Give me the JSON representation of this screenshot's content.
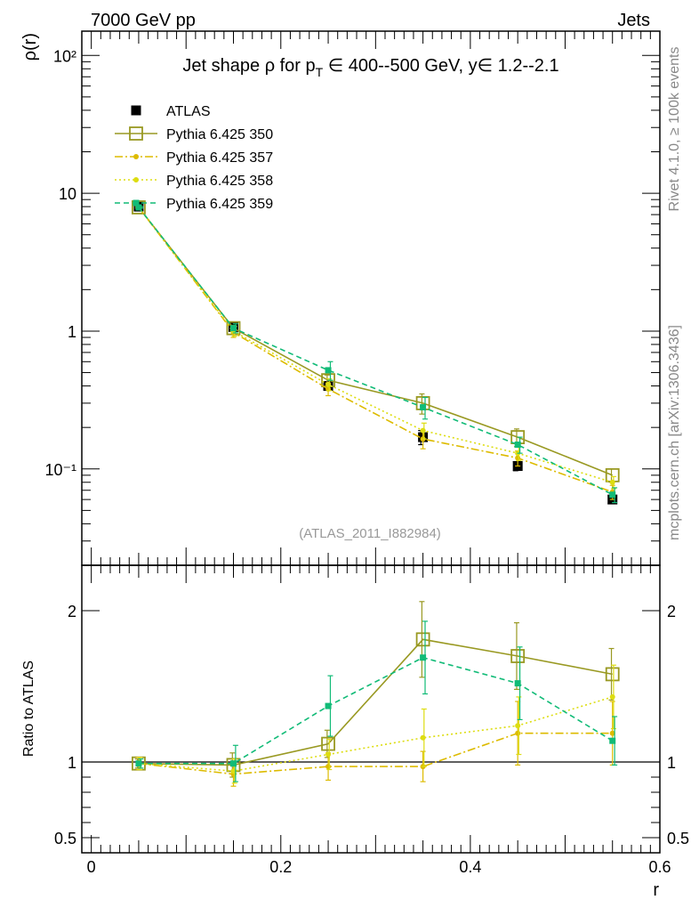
{
  "header": {
    "left": "7000 GeV pp",
    "right": "Jets"
  },
  "side_labels": {
    "rivet": "Rivet 4.1.0, ≥ 100k events",
    "mcplots": "mcplots.cern.ch [arXiv:1306.3436]"
  },
  "colors": {
    "atlas": "#000000",
    "p350": "#999922",
    "p357": "#ddbb00",
    "p358": "#dddd11",
    "p359": "#11bb77"
  },
  "chart_data": [
    {
      "type": "line",
      "title": "Jet shape ρ for p_T ∈ 400--500 GeV, y∈ 1.2--2.1",
      "title_parts": {
        "pre": "Jet shape ρ for p",
        "sub": "T",
        "post": " ∈ 400--500 GeV, y∈ 1.2--2.1"
      },
      "ylabel": "ρ(r)",
      "yscale": "log",
      "ylim": [
        0.02,
        150
      ],
      "xlim": [
        -0.01,
        0.6
      ],
      "ytick_labels": [
        "10²",
        "10",
        "1",
        "10⁻¹"
      ],
      "x": [
        0.05,
        0.15,
        0.25,
        0.35,
        0.45,
        0.55
      ],
      "watermark": "(ATLAS_2011_I882984)",
      "legend": [
        "ATLAS",
        "Pythia 6.425 350",
        "Pythia 6.425 357",
        "Pythia 6.425 358",
        "Pythia 6.425 359"
      ],
      "series": [
        {
          "name": "ATLAS",
          "values": [
            8.0,
            1.07,
            0.4,
            0.17,
            0.105,
            0.06
          ],
          "errors": [
            0.1,
            0.03,
            0.02,
            0.02,
            0.008,
            0.004
          ]
        },
        {
          "name": "Pythia 6.425 350",
          "values": [
            7.9,
            1.05,
            0.44,
            0.3,
            0.17,
            0.09
          ],
          "errors": [
            0.1,
            0.05,
            0.04,
            0.05,
            0.025,
            0.01
          ]
        },
        {
          "name": "Pythia 6.425 357",
          "values": [
            7.9,
            0.98,
            0.38,
            0.165,
            0.12,
            0.068
          ],
          "errors": [
            0.1,
            0.08,
            0.04,
            0.025,
            0.015,
            0.008
          ]
        },
        {
          "name": "Pythia 6.425 358",
          "values": [
            7.9,
            1.0,
            0.41,
            0.19,
            0.13,
            0.08
          ],
          "errors": [
            0.1,
            0.08,
            0.04,
            0.025,
            0.015,
            0.008
          ]
        },
        {
          "name": "Pythia 6.425 359",
          "values": [
            7.9,
            1.05,
            0.52,
            0.28,
            0.15,
            0.065
          ],
          "errors": [
            0.1,
            0.08,
            0.08,
            0.05,
            0.02,
            0.008
          ]
        }
      ]
    },
    {
      "type": "line",
      "ylabel": "Ratio to ATLAS",
      "xlabel": "r",
      "ylim": [
        0.4,
        2.3
      ],
      "xlim": [
        -0.01,
        0.6
      ],
      "x": [
        0.05,
        0.15,
        0.25,
        0.35,
        0.45,
        0.55
      ],
      "yticks": [
        0.5,
        1,
        2
      ],
      "ytick_labels": [
        "0.5",
        "1",
        "2"
      ],
      "xticks": [
        0,
        0.2,
        0.4,
        0.6
      ],
      "xtick_labels": [
        "0",
        "0.2",
        "0.4",
        "0.6"
      ],
      "reference": 1,
      "series": [
        {
          "name": "Pythia 6.425 350",
          "values": [
            0.99,
            0.98,
            1.12,
            1.81,
            1.7,
            1.58
          ],
          "errors": [
            0.03,
            0.08,
            0.09,
            0.25,
            0.22,
            0.17
          ]
        },
        {
          "name": "Pythia 6.425 357",
          "values": [
            0.99,
            0.92,
            0.97,
            0.97,
            1.19,
            1.19
          ],
          "errors": [
            0.04,
            0.08,
            0.09,
            0.1,
            0.21,
            0.21
          ]
        },
        {
          "name": "Pythia 6.425 358",
          "values": [
            0.99,
            0.94,
            1.05,
            1.16,
            1.24,
            1.43
          ],
          "errors": [
            0.04,
            0.08,
            0.1,
            0.19,
            0.19,
            0.21
          ]
        },
        {
          "name": "Pythia 6.425 359",
          "values": [
            0.99,
            0.99,
            1.37,
            1.69,
            1.52,
            1.14
          ],
          "errors": [
            0.03,
            0.12,
            0.2,
            0.24,
            0.24,
            0.16
          ]
        }
      ]
    }
  ]
}
